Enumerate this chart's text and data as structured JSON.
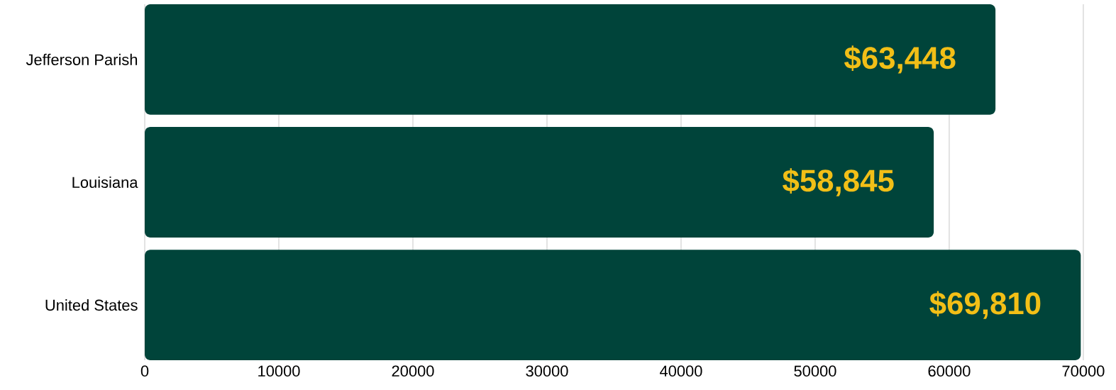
{
  "chart_data": {
    "type": "bar",
    "orientation": "horizontal",
    "categories": [
      "Jefferson Parish",
      "Louisiana",
      "United States"
    ],
    "values": [
      63448,
      58845,
      69810
    ],
    "value_labels": [
      "$63,448",
      "$58,845",
      "$69,810"
    ],
    "color": "#00443a",
    "xlim": [
      0,
      70000
    ],
    "xticks": [
      0,
      10000,
      20000,
      30000,
      40000,
      50000,
      60000,
      70000
    ],
    "grid": "x"
  }
}
